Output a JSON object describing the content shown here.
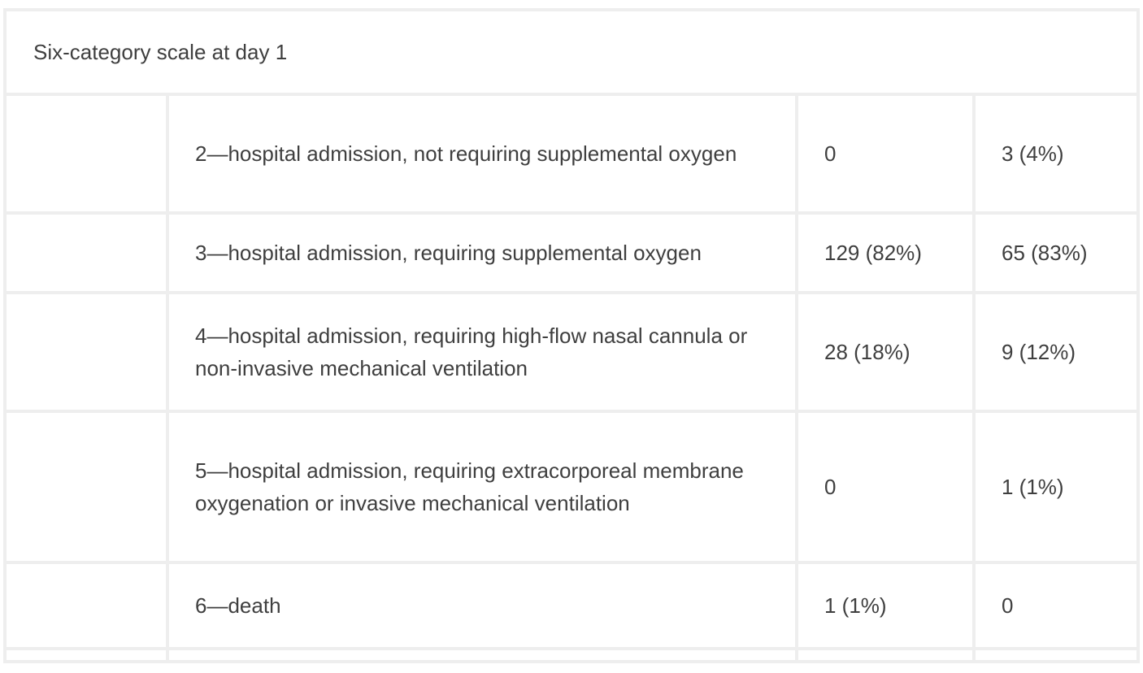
{
  "section": {
    "title": "Six-category scale at day 1"
  },
  "rows": [
    {
      "label": "2—hospital admission, not requiring supplemental oxygen",
      "col1": "0",
      "col2": "3 (4%)"
    },
    {
      "label": "3—hospital admission, requiring supplemental oxygen",
      "col1": "129 (82%)",
      "col2": "65 (83%)"
    },
    {
      "label": "4—hospital admission, requiring high-flow nasal cannula or non-invasive mechanical ventilation",
      "col1": "28 (18%)",
      "col2": "9 (12%)"
    },
    {
      "label": "5—hospital admission, requiring extracorporeal membrane oxygenation or invasive mechanical ventilation",
      "col1": "0",
      "col2": "1 (1%)"
    },
    {
      "label": "6—death",
      "col1": "1 (1%)",
      "col2": "0"
    }
  ]
}
